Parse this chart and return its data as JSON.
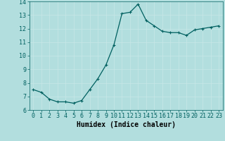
{
  "x": [
    0,
    1,
    2,
    3,
    4,
    5,
    6,
    7,
    8,
    9,
    10,
    11,
    12,
    13,
    14,
    15,
    16,
    17,
    18,
    19,
    20,
    21,
    22,
    23
  ],
  "y": [
    7.5,
    7.3,
    6.8,
    6.6,
    6.6,
    6.5,
    6.7,
    7.5,
    8.3,
    9.3,
    10.8,
    13.1,
    13.2,
    13.8,
    12.6,
    12.2,
    11.8,
    11.7,
    11.7,
    11.5,
    11.9,
    12.0,
    12.1,
    12.2
  ],
  "xlabel": "Humidex (Indice chaleur)",
  "xlim": [
    -0.5,
    23.5
  ],
  "ylim": [
    6,
    14
  ],
  "yticks": [
    6,
    7,
    8,
    9,
    10,
    11,
    12,
    13,
    14
  ],
  "xticks": [
    0,
    1,
    2,
    3,
    4,
    5,
    6,
    7,
    8,
    9,
    10,
    11,
    12,
    13,
    14,
    15,
    16,
    17,
    18,
    19,
    20,
    21,
    22,
    23
  ],
  "line_color": "#006060",
  "marker": "+",
  "bg_color": "#b2dede",
  "grid_color": "#c8e8e8",
  "tick_fontsize": 6,
  "xlabel_fontsize": 7,
  "linewidth": 0.9,
  "markersize": 3.0,
  "markeredgewidth": 0.8
}
